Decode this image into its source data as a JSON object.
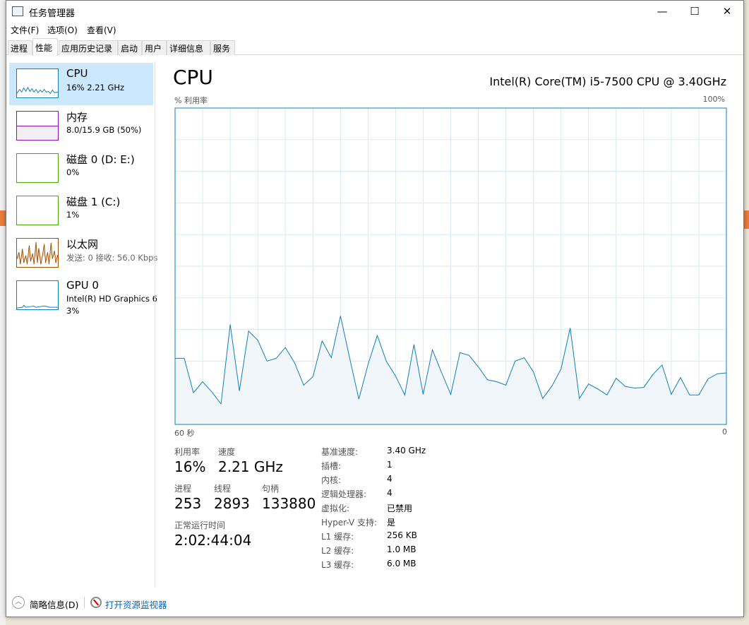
{
  "window": {
    "title": "任务管理器",
    "minimize": "—",
    "maximize": "☐",
    "close": "✕"
  },
  "menu": [
    "文件(F)",
    "选项(O)",
    "查看(V)"
  ],
  "tabs": [
    "进程",
    "性能",
    "应用历史记录",
    "启动",
    "用户",
    "详细信息",
    "服务"
  ],
  "active_tab": "性能",
  "sidebar": {
    "items": [
      {
        "name": "CPU",
        "sub": "16% 2.21 GHz",
        "color": "#117dbb"
      },
      {
        "name": "内存",
        "sub": "8.0/15.9 GB (50%)",
        "color": "#8b12ae"
      },
      {
        "name": "磁盘 0 (D: E:)",
        "sub": "0%",
        "color": "#4da60c"
      },
      {
        "name": "磁盘 1 (C:)",
        "sub": "1%",
        "color": "#4da60c"
      },
      {
        "name": "以太网",
        "sub_label": "发送: 0 接收: 56.0 Kbps",
        "color": "#a74f01"
      },
      {
        "name": "GPU 0",
        "sub": "Intel(R) HD Graphics 6",
        "sub2": "3%",
        "color": "#117dbb"
      }
    ]
  },
  "main": {
    "title": "CPU",
    "model": "Intel(R) Core(TM) i5-7500 CPU @ 3.40GHz",
    "chart_ylabel": "% 利用率",
    "chart_ymax_label": "100%",
    "chart_x_left": "60 秒",
    "chart_x_right": "0",
    "stats": {
      "util_label": "利用率",
      "util": "16%",
      "speed_label": "速度",
      "speed": "2.21 GHz",
      "proc_label": "进程",
      "proc": "253",
      "threads_label": "线程",
      "threads": "2893",
      "handles_label": "句柄",
      "handles": "133880",
      "uptime_label": "正常运行时间",
      "uptime": "2:02:44:04"
    },
    "details": [
      {
        "k": "基准速度:",
        "v": "3.40 GHz"
      },
      {
        "k": "插槽:",
        "v": "1"
      },
      {
        "k": "内核:",
        "v": "4"
      },
      {
        "k": "逻辑处理器:",
        "v": "4"
      },
      {
        "k": "虚拟化:",
        "v": "已禁用"
      },
      {
        "k": "Hyper-V 支持:",
        "v": "是"
      },
      {
        "k": "L1 缓存:",
        "v": "256 KB"
      },
      {
        "k": "L2 缓存:",
        "v": "1.0 MB"
      },
      {
        "k": "L3 缓存:",
        "v": "6.0 MB"
      }
    ]
  },
  "footer": {
    "fewer_details": "简略信息(D)",
    "open_monitor": "打开资源监视器"
  },
  "chart_data": {
    "type": "area",
    "xlabel": "60 秒",
    "ylabel": "% 利用率",
    "xlim": [
      60,
      0
    ],
    "ylim": [
      0,
      100
    ],
    "grid": true,
    "color": "#117dbb",
    "values": [
      20.9,
      20.9,
      10.0,
      13.5,
      10.3,
      6.5,
      31.6,
      10.6,
      29.5,
      26.6,
      20.0,
      20.9,
      24.3,
      19.5,
      12.4,
      15.1,
      26.4,
      21.1,
      34.3,
      21.0,
      8.0,
      19.0,
      28.1,
      19.9,
      15.3,
      9.3,
      25.3,
      9.5,
      23.6,
      16.4,
      9.5,
      22.7,
      21.8,
      18.2,
      14.1,
      13.5,
      12.4,
      20.0,
      21.1,
      16.6,
      8.2,
      12.1,
      17.5,
      30.5,
      8.2,
      12.8,
      11.2,
      9.3,
      14.6,
      12.0,
      11.5,
      11.7,
      15.8,
      18.8,
      9.5,
      14.8,
      9.3,
      9.3,
      14.4,
      16.0,
      16.3
    ]
  }
}
